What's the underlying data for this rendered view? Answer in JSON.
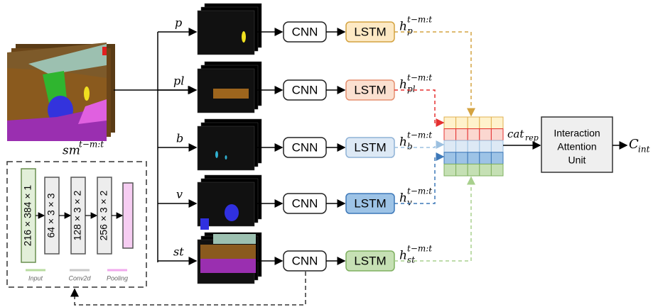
{
  "input": {
    "base": "sm",
    "sup": "t−m:t"
  },
  "branches": [
    {
      "label": "p",
      "cnn": "CNN",
      "lstm": "LSTM",
      "hidden": {
        "base": "h",
        "sub": "p",
        "sup": "t−m:t"
      }
    },
    {
      "label": "pl",
      "cnn": "CNN",
      "lstm": "LSTM",
      "hidden": {
        "base": "h",
        "sub": "pl",
        "sup": "t−m:t"
      }
    },
    {
      "label": "b",
      "cnn": "CNN",
      "lstm": "LSTM",
      "hidden": {
        "base": "h",
        "sub": "b",
        "sup": "t−m:t"
      }
    },
    {
      "label": "v",
      "cnn": "CNN",
      "lstm": "LSTM",
      "hidden": {
        "base": "h",
        "sub": "v",
        "sup": "t−m:t"
      }
    },
    {
      "label": "st",
      "cnn": "CNN",
      "lstm": "LSTM",
      "hidden": {
        "base": "h",
        "sub": "st",
        "sup": "t−m:t"
      }
    }
  ],
  "concat": {
    "base": "cat",
    "sub": "rep"
  },
  "attention": {
    "lines": [
      "Interaction",
      "Attention",
      "Unit"
    ]
  },
  "output": {
    "base": "C",
    "sub": "int"
  },
  "cnn_detail": {
    "layers": [
      "216 × 384 × 1",
      "64 × 3 × 3",
      "128 × 3 × 2",
      "256 × 3 × 2"
    ],
    "key": [
      "Input",
      "Conv2d",
      "Pooling"
    ]
  }
}
